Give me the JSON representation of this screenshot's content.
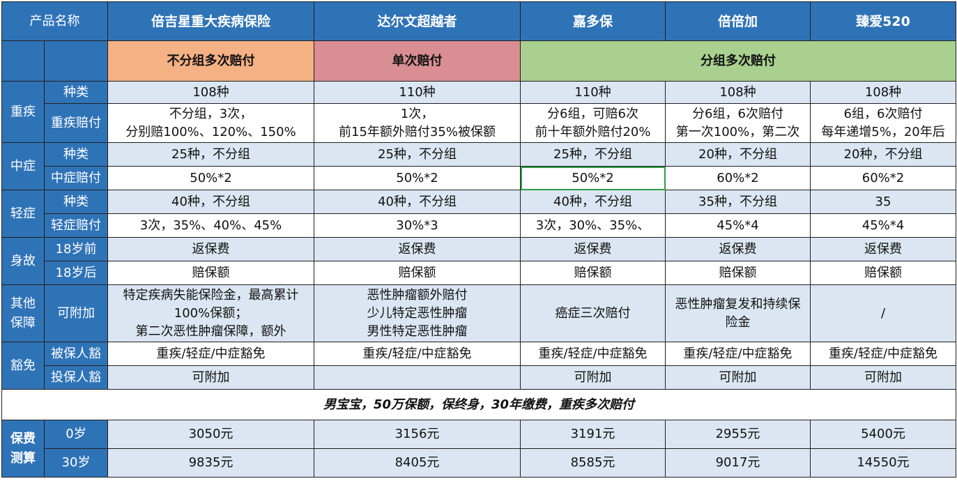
{
  "header": {
    "product_name_label": "产品名称",
    "products": [
      "倍吉星重大疾病保险",
      "达尔文超越者",
      "嘉多保",
      "倍倍加",
      "臻爱520"
    ]
  },
  "groups": {
    "no_group_multi": "不分组多次赔付",
    "single": "单次赔付",
    "group_multi": "分组多次赔付"
  },
  "categories": {
    "critical": "重疾",
    "moderate": "中症",
    "mild": "轻症",
    "death": "身故",
    "other": "其他保障",
    "waiver": "豁免",
    "premium": "保费测算"
  },
  "sub_labels": {
    "kinds": "种类",
    "critical_pay": "重疾赔付",
    "moderate_pay": "中症赔付",
    "mild_pay": "轻症赔付",
    "before18": "18岁前",
    "after18": "18岁后",
    "addon": "可附加",
    "insured_waiver": "被保人豁",
    "holder_waiver": "投保人豁",
    "age0": "0岁",
    "age30": "30岁"
  },
  "rows": {
    "critical_kinds": [
      "108种",
      "110种",
      "110种",
      "108种",
      "108种"
    ],
    "critical_pay": [
      [
        "不分组，3次，",
        "分别赔100%、120%、150%"
      ],
      [
        "1次，",
        "前15年额外赔付35%被保额"
      ],
      [
        "分6组，可赔6次",
        "前十年额外赔付20%"
      ],
      [
        "分6组，6次赔付",
        "第一次100%，第二次"
      ],
      [
        "6组，6次赔付",
        "每年递增5%，20年后"
      ]
    ],
    "moderate_kinds": [
      "25种，不分组",
      "25种，不分组",
      "25种，不分组",
      "20种，不分组",
      "20种，不分组"
    ],
    "moderate_pay": [
      "50%*2",
      "50%*2",
      "50%*2",
      "60%*2",
      "60%*2"
    ],
    "mild_kinds": [
      "40种，不分组",
      "40种，不分组",
      "40种，不分组",
      "35种，不分组",
      "35"
    ],
    "mild_pay": [
      "3次，35%、40%、45%",
      "30%*3",
      "3次，30%、35%、",
      "45%*4",
      "45%*4"
    ],
    "death_before18": [
      "返保费",
      "返保费",
      "返保费",
      "返保费",
      "返保费"
    ],
    "death_after18": [
      "赔保额",
      "赔保额",
      "赔保额",
      "赔保额",
      "赔保额"
    ],
    "addon": [
      [
        "特定疾病失能保险金，最高累计",
        "100%保额；",
        "第二次恶性肿瘤保障，额外"
      ],
      [
        "恶性肿瘤额外赔付",
        "少儿特定恶性肿瘤",
        "男性特定恶性肿瘤"
      ],
      [
        "癌症三次赔付"
      ],
      [
        "恶性肿瘤复发和持续保",
        "险金"
      ],
      [
        "/"
      ]
    ],
    "insured_waiver": [
      "重疾/轻症/中症豁免",
      "重疾/轻症/中症豁免",
      "重疾/轻症/中症豁免",
      "重疾/轻症/中症豁免",
      "重疾/轻症/中症豁免"
    ],
    "holder_waiver": [
      "可附加",
      "",
      "可附加",
      "可附加",
      "可附加"
    ]
  },
  "note": "男宝宝，50万保额，保终身，30年缴费，重疾多次赔付",
  "premium": {
    "age0": [
      "3050元",
      "3156元",
      "3191元",
      "2955元",
      "5400元"
    ],
    "age30": [
      "9835元",
      "8405元",
      "8585元",
      "9017元",
      "14550元"
    ]
  },
  "colors": {
    "header_blue": "#2f73b7",
    "light_blue": "#dbe6f2",
    "orange": "#f4b184",
    "pink": "#d98e94",
    "green": "#a9d08e",
    "selection_green": "#2f9e44"
  }
}
